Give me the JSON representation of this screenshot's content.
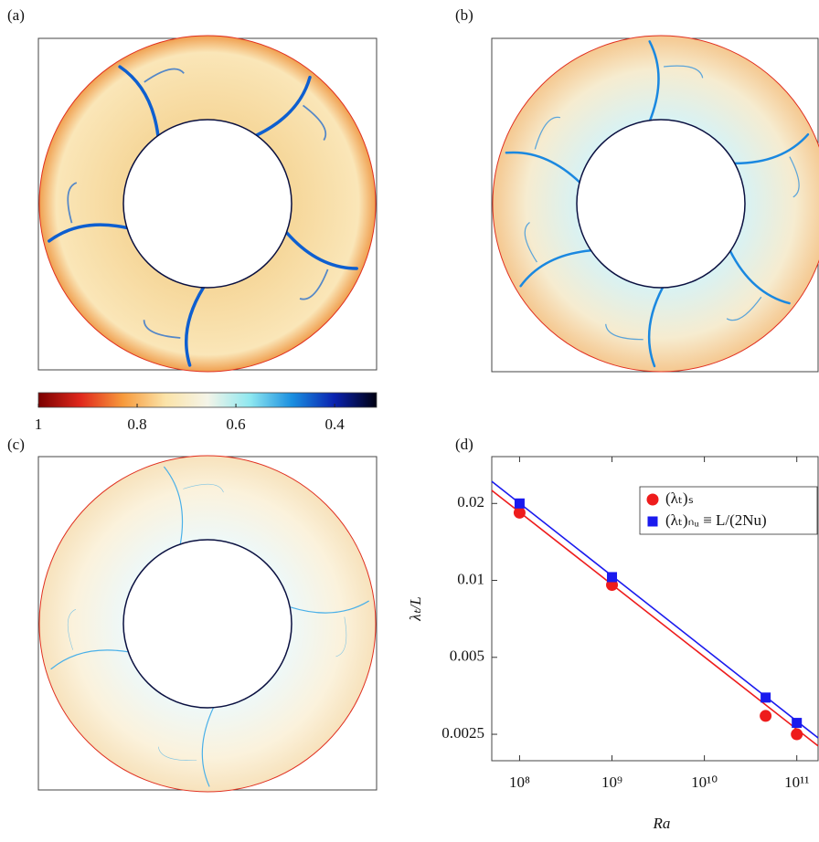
{
  "panels": {
    "a": "(a)",
    "b": "(b)",
    "c": "(c)",
    "d": "(d)"
  },
  "chart_data": [
    {
      "type": "colorbar",
      "xlim": [
        1,
        0.315
      ],
      "xticks": [
        1,
        0.8,
        0.6,
        0.4
      ],
      "colors": [
        "#7a0000",
        "#e0281c",
        "#f79a3c",
        "#fbe3a8",
        "#f4f4e8",
        "#8fe8f0",
        "#1a8fe0",
        "#0a22b0",
        "#000010"
      ]
    },
    {
      "type": "scatter",
      "xlog": true,
      "ylog": true,
      "xlabel": "Ra",
      "ylabel": "λₜ/L",
      "xlim": [
        50000000,
        170000000000
      ],
      "ylim": [
        0.00197,
        0.0305
      ],
      "xticks": [
        {
          "value": 100000000,
          "label": "10⁸"
        },
        {
          "value": 1000000000,
          "label": "10⁹"
        },
        {
          "value": 10000000000,
          "label": "10¹⁰"
        },
        {
          "value": 100000000000,
          "label": "10¹¹"
        }
      ],
      "yticks": [
        0.02,
        0.01,
        0.005,
        0.0025
      ],
      "legend": "upper right",
      "series": [
        {
          "name": "(λₜ)ₛ",
          "color": "#ee1c1c",
          "marker": "circle",
          "x": [
            100000000,
            1000000000,
            46000000000,
            100000000000
          ],
          "values": [
            0.0184,
            0.0096,
            0.00295,
            0.0025
          ],
          "fit": {
            "x": [
              50000000,
              170000000000
            ],
            "values": [
              0.0225,
              0.00225
            ]
          }
        },
        {
          "name": "(λₜ)ₙᵤ ≡ L/(2Nu)",
          "color": "#1a1aee",
          "marker": "square",
          "x": [
            100000000,
            1000000000,
            46000000000,
            100000000000
          ],
          "values": [
            0.02,
            0.0103,
            0.00348,
            0.00277
          ],
          "fit": {
            "x": [
              50000000,
              170000000000
            ],
            "values": [
              0.0244,
              0.00242
            ]
          }
        }
      ]
    }
  ]
}
